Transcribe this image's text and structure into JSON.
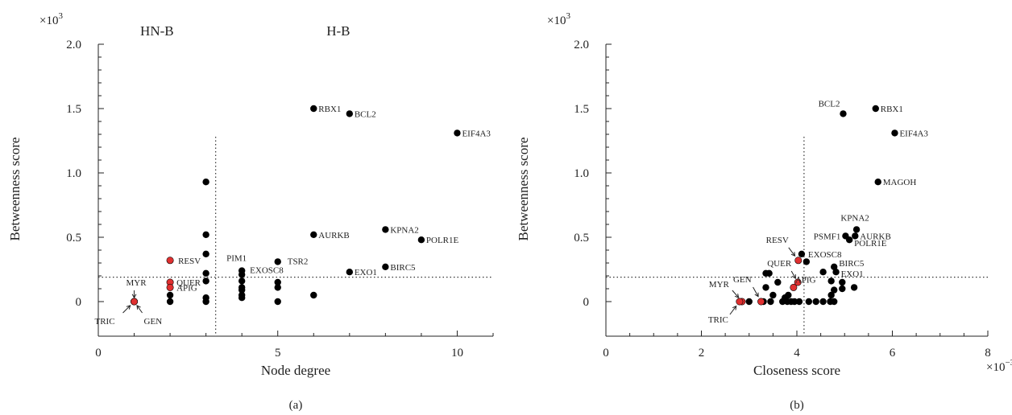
{
  "chart_data": [
    {
      "type": "scatter",
      "panel_label": "(a)",
      "xlabel": "Node degree",
      "ylabel": "Betweenness score",
      "y_multiplier": "×10",
      "y_multiplier_exp": "3",
      "x_multiplier": "",
      "x_multiplier_exp": "",
      "xlim": [
        0,
        11
      ],
      "ylim": [
        -0.27,
        2.0
      ],
      "xticks": [
        0,
        5,
        10
      ],
      "xtick_labels": [
        "0",
        "5",
        "10"
      ],
      "yticks": [
        0,
        0.5,
        1.0,
        1.5,
        2.0
      ],
      "ytick_labels": [
        "0",
        "0.5",
        "1.0",
        "1.5",
        "2.0"
      ],
      "threshold_x": 3.27,
      "threshold_y": 0.19,
      "regions": [
        "HN-B",
        "H-B"
      ],
      "colors": {
        "default": "#000000",
        "highlight": "#e03030"
      },
      "points": [
        {
          "x": 6,
          "y": 1.5,
          "label": "RBX1"
        },
        {
          "x": 7,
          "y": 1.46,
          "label": "BCL2"
        },
        {
          "x": 10,
          "y": 1.31,
          "label": "EIF4A3"
        },
        {
          "x": 6,
          "y": 0.52,
          "label": "AURKB"
        },
        {
          "x": 8,
          "y": 0.56,
          "label": "KPNA2"
        },
        {
          "x": 9,
          "y": 0.48,
          "label": "POLR1E"
        },
        {
          "x": 8,
          "y": 0.27,
          "label": "BIRC5"
        },
        {
          "x": 7,
          "y": 0.23,
          "label": "EXO1"
        },
        {
          "x": 5,
          "y": 0.31,
          "label": "TSR2"
        },
        {
          "x": 4,
          "y": 0.24,
          "label": "PIM1"
        },
        {
          "x": 4,
          "y": 0.21,
          "label": "EXOSC8"
        },
        {
          "x": 2,
          "y": 0.32,
          "label": "RESV",
          "highlight": true
        },
        {
          "x": 2,
          "y": 0.15,
          "label": "QUER",
          "highlight": true
        },
        {
          "x": 2,
          "y": 0.11,
          "label": "APIG",
          "highlight": true
        },
        {
          "x": 1,
          "y": 0.0,
          "label": "MYR",
          "highlight": true
        },
        {
          "x": 1,
          "y": 0.0,
          "label": "TRIC",
          "highlight": true
        },
        {
          "x": 1,
          "y": 0.0,
          "label": "GEN",
          "highlight": true
        },
        {
          "x": 3,
          "y": 0.93
        },
        {
          "x": 3,
          "y": 0.52
        },
        {
          "x": 3,
          "y": 0.37
        },
        {
          "x": 3,
          "y": 0.22
        },
        {
          "x": 3,
          "y": 0.16
        },
        {
          "x": 3,
          "y": 0.03
        },
        {
          "x": 3,
          "y": 0.0
        },
        {
          "x": 2,
          "y": 0.05
        },
        {
          "x": 2,
          "y": 0.0
        },
        {
          "x": 4,
          "y": 0.16
        },
        {
          "x": 4,
          "y": 0.11
        },
        {
          "x": 4,
          "y": 0.09
        },
        {
          "x": 4,
          "y": 0.05
        },
        {
          "x": 4,
          "y": 0.03
        },
        {
          "x": 5,
          "y": 0.15
        },
        {
          "x": 5,
          "y": 0.11
        },
        {
          "x": 5,
          "y": 0.0
        },
        {
          "x": 6,
          "y": 0.05
        }
      ]
    },
    {
      "type": "scatter",
      "panel_label": "(b)",
      "xlabel": "Closeness score",
      "ylabel": "Betweenness score",
      "y_multiplier": "×10",
      "y_multiplier_exp": "3",
      "x_multiplier": "×10",
      "x_multiplier_exp": "−3",
      "xlim": [
        0,
        8
      ],
      "ylim": [
        -0.27,
        2.0
      ],
      "xticks": [
        0,
        2,
        4,
        6,
        8
      ],
      "xtick_labels": [
        "0",
        "2",
        "4",
        "6",
        "8"
      ],
      "yticks": [
        0,
        0.5,
        1.0,
        1.5,
        2.0
      ],
      "ytick_labels": [
        "0",
        "0.5",
        "1.0",
        "1.5",
        "2.0"
      ],
      "threshold_x": 4.15,
      "threshold_y": 0.19,
      "regions": [],
      "colors": {
        "default": "#000000",
        "highlight": "#e03030"
      },
      "points": [
        {
          "x": 5.65,
          "y": 1.5,
          "label": "RBX1"
        },
        {
          "x": 4.97,
          "y": 1.46,
          "label": "BCL2"
        },
        {
          "x": 6.05,
          "y": 1.31,
          "label": "EIF4A3"
        },
        {
          "x": 5.7,
          "y": 0.93,
          "label": "MAGOH"
        },
        {
          "x": 5.25,
          "y": 0.56,
          "label": "KPNA2"
        },
        {
          "x": 5.02,
          "y": 0.51,
          "label": "PSMF1"
        },
        {
          "x": 5.22,
          "y": 0.51,
          "label": "AURKB"
        },
        {
          "x": 5.1,
          "y": 0.48,
          "label": "POLR1E"
        },
        {
          "x": 4.78,
          "y": 0.27,
          "label": "BIRC5"
        },
        {
          "x": 4.82,
          "y": 0.23,
          "label": "EXO1"
        },
        {
          "x": 4.1,
          "y": 0.37,
          "label": "EXOSC8"
        },
        {
          "x": 4.03,
          "y": 0.32,
          "label": "RESV",
          "highlight": true
        },
        {
          "x": 4.02,
          "y": 0.15,
          "label": "QUER",
          "highlight": true
        },
        {
          "x": 3.93,
          "y": 0.11,
          "label": "APIG",
          "highlight": true
        },
        {
          "x": 3.25,
          "y": 0.0,
          "label": "GEN",
          "highlight": true
        },
        {
          "x": 2.85,
          "y": 0.0,
          "label": "MYR",
          "highlight": true
        },
        {
          "x": 2.8,
          "y": 0.0,
          "label": "TRIC",
          "highlight": true
        },
        {
          "x": 4.95,
          "y": 0.15
        },
        {
          "x": 4.95,
          "y": 0.1
        },
        {
          "x": 5.2,
          "y": 0.11
        },
        {
          "x": 4.2,
          "y": 0.31
        },
        {
          "x": 4.55,
          "y": 0.23
        },
        {
          "x": 3.35,
          "y": 0.22
        },
        {
          "x": 3.42,
          "y": 0.22
        },
        {
          "x": 3.6,
          "y": 0.15
        },
        {
          "x": 3.82,
          "y": 0.05
        },
        {
          "x": 3.75,
          "y": 0.03
        },
        {
          "x": 3.5,
          "y": 0.05
        },
        {
          "x": 3.35,
          "y": 0.11
        },
        {
          "x": 3.0,
          "y": 0.0
        },
        {
          "x": 3.3,
          "y": 0.0
        },
        {
          "x": 3.45,
          "y": 0.0
        },
        {
          "x": 3.7,
          "y": 0.0
        },
        {
          "x": 3.8,
          "y": 0.0
        },
        {
          "x": 3.88,
          "y": 0.0
        },
        {
          "x": 3.95,
          "y": 0.0
        },
        {
          "x": 4.05,
          "y": 0.0
        },
        {
          "x": 4.25,
          "y": 0.0
        },
        {
          "x": 4.4,
          "y": 0.0
        },
        {
          "x": 4.55,
          "y": 0.0
        },
        {
          "x": 4.7,
          "y": 0.0
        },
        {
          "x": 4.78,
          "y": 0.0
        },
        {
          "x": 4.72,
          "y": 0.05
        },
        {
          "x": 4.78,
          "y": 0.09
        },
        {
          "x": 4.72,
          "y": 0.16
        }
      ]
    }
  ]
}
